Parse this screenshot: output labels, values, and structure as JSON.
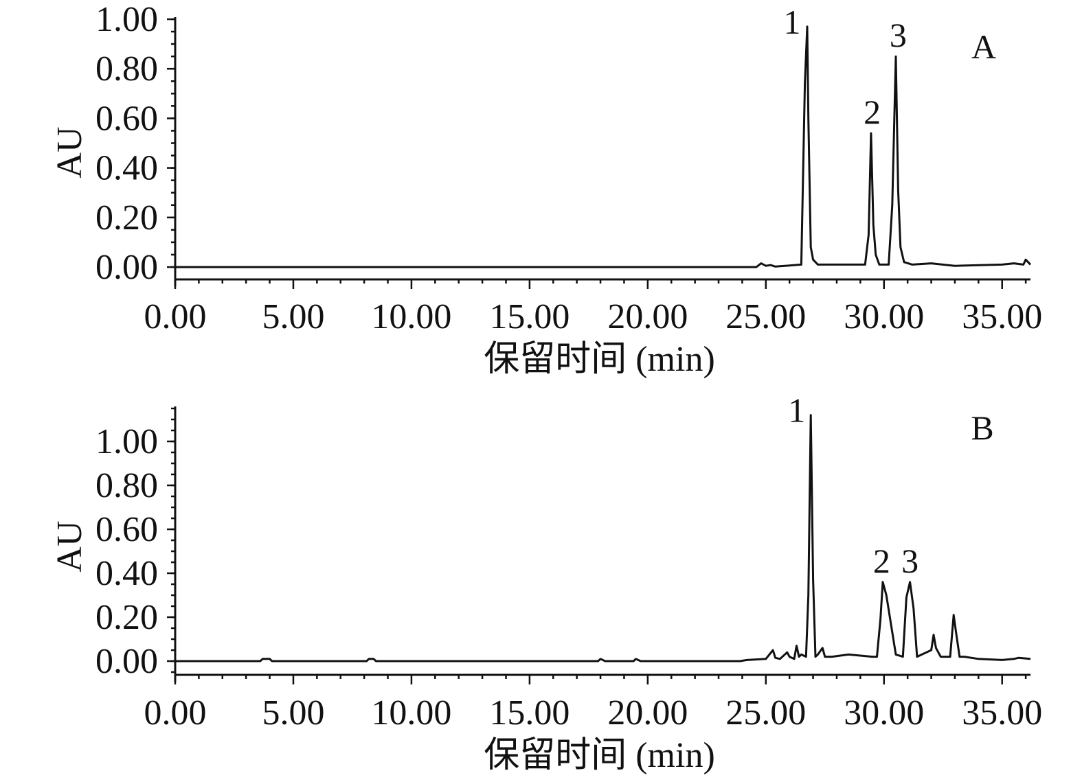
{
  "chart_data": [
    {
      "type": "line",
      "panel_label": "A",
      "xlabel": "保留时间 (min)",
      "ylabel": "AU",
      "xlim": [
        0,
        36.2
      ],
      "ylim": [
        -0.05,
        1.0
      ],
      "xticks": [
        0,
        5,
        10,
        15,
        20,
        25,
        30,
        35
      ],
      "xtick_labels": [
        "0.00",
        "5.00",
        "10.00",
        "15.00",
        "20.00",
        "25.00",
        "30.00",
        "35.00"
      ],
      "yticks": [
        0,
        0.2,
        0.4,
        0.6,
        0.8,
        1.0
      ],
      "ytick_labels": [
        "0.00",
        "0.20",
        "0.40",
        "0.60",
        "0.80",
        "1.00"
      ],
      "grid": false,
      "peak_labels": [
        {
          "text": "1",
          "x": 26.75,
          "y": 0.97
        },
        {
          "text": "2",
          "x": 29.5,
          "y": 0.54
        },
        {
          "text": "3",
          "x": 30.6,
          "y": 0.85
        }
      ],
      "series": [
        {
          "x": [
            0,
            24.6,
            24.8,
            25.0,
            25.2,
            25.4,
            26.5,
            26.65,
            26.75,
            26.8,
            26.9,
            27.0,
            27.2,
            28.0,
            29.2,
            29.35,
            29.45,
            29.55,
            29.65,
            29.8,
            30.2,
            30.35,
            30.5,
            30.6,
            30.7,
            30.85,
            31.2,
            32.0,
            33.0,
            35.0,
            35.5,
            35.9,
            36.0,
            36.2
          ],
          "y": [
            0,
            0,
            0.015,
            0.005,
            0.008,
            0.002,
            0.01,
            0.74,
            0.97,
            0.6,
            0.08,
            0.03,
            0.01,
            0.01,
            0.01,
            0.13,
            0.54,
            0.17,
            0.05,
            0.01,
            0.01,
            0.25,
            0.85,
            0.31,
            0.08,
            0.02,
            0.01,
            0.015,
            0.005,
            0.01,
            0.015,
            0.01,
            0.03,
            0.01
          ]
        }
      ]
    },
    {
      "type": "line",
      "panel_label": "B",
      "xlabel": "保留时间 (min)",
      "ylabel": "AU",
      "xlim": [
        0,
        36.2
      ],
      "ylim": [
        -0.05,
        1.15
      ],
      "xticks": [
        0,
        5,
        10,
        15,
        20,
        25,
        30,
        35
      ],
      "xtick_labels": [
        "0.00",
        "5.00",
        "10.00",
        "15.00",
        "20.00",
        "25.00",
        "30.00",
        "35.00"
      ],
      "yticks": [
        0,
        0.2,
        0.4,
        0.6,
        0.8,
        1.0
      ],
      "ytick_labels": [
        "0.00",
        "0.20",
        "0.40",
        "0.60",
        "0.80",
        "1.00"
      ],
      "grid": false,
      "peak_labels": [
        {
          "text": "1",
          "x": 26.95,
          "y": 1.12
        },
        {
          "text": "2",
          "x": 29.9,
          "y": 0.36
        },
        {
          "text": "3",
          "x": 31.1,
          "y": 0.36
        }
      ],
      "series": [
        {
          "x": [
            0,
            3.6,
            3.7,
            4.0,
            4.1,
            8.1,
            8.2,
            8.4,
            8.5,
            17.9,
            18.0,
            18.2,
            19.4,
            19.5,
            19.7,
            23.9,
            24.2,
            25.0,
            25.3,
            25.4,
            25.6,
            25.9,
            26.0,
            26.2,
            26.3,
            26.4,
            26.5,
            26.7,
            26.8,
            26.9,
            27.0,
            27.1,
            27.2,
            27.4,
            27.5,
            27.8,
            28.5,
            29.5,
            29.7,
            29.85,
            29.95,
            30.1,
            30.5,
            30.8,
            30.95,
            31.1,
            31.25,
            31.4,
            31.6,
            32.0,
            32.1,
            32.2,
            32.4,
            32.8,
            32.95,
            33.05,
            33.2,
            33.4,
            34.0,
            35.0,
            35.5,
            35.7,
            36.2
          ],
          "y": [
            0,
            0,
            0.01,
            0.01,
            0,
            0,
            0.01,
            0.01,
            0,
            0,
            0.01,
            0,
            0,
            0.01,
            0,
            0,
            0.005,
            0.01,
            0.05,
            0.015,
            0.01,
            0.04,
            0.02,
            0.01,
            0.07,
            0.02,
            0.03,
            0.02,
            0.3,
            1.12,
            0.37,
            0.02,
            0.03,
            0.06,
            0.02,
            0.02,
            0.03,
            0.02,
            0.02,
            0.19,
            0.36,
            0.3,
            0.03,
            0.02,
            0.29,
            0.36,
            0.24,
            0.02,
            0.03,
            0.05,
            0.12,
            0.06,
            0.02,
            0.02,
            0.21,
            0.13,
            0.02,
            0.02,
            0.01,
            0.005,
            0.01,
            0.015,
            0.01
          ]
        }
      ]
    }
  ]
}
